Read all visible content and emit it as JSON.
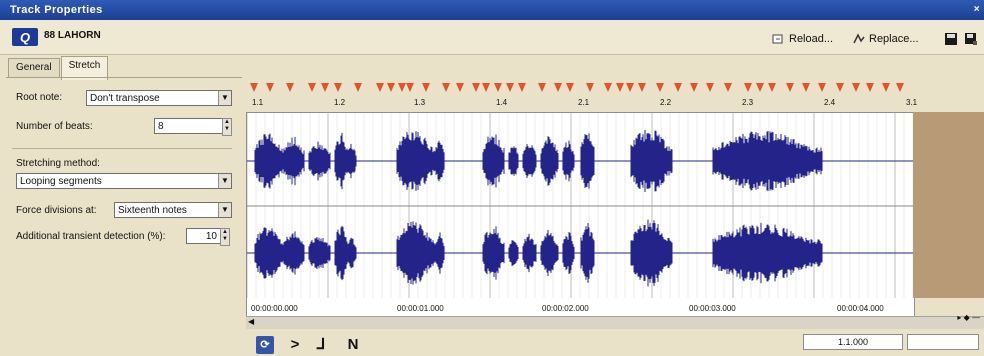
{
  "window": {
    "title": "Track Properties"
  },
  "track": {
    "name": "88 LAHORN"
  },
  "toolbar": {
    "reload_label": "Reload...",
    "replace_label": "Replace..."
  },
  "tabs": [
    {
      "label": "General"
    },
    {
      "label": "Stretch"
    }
  ],
  "stretch": {
    "root_note_label": "Root note:",
    "root_note_value": "Don't transpose",
    "beats_label": "Number of beats:",
    "beats_value": "8",
    "method_label": "Stretching method:",
    "method_value": "Looping segments",
    "divisions_label": "Force divisions at:",
    "divisions_value": "Sixteenth notes",
    "transient_label": "Additional transient detection (%):",
    "transient_value": "10"
  },
  "ruler": [
    "1.1",
    "1.2",
    "1.3",
    "1.4",
    "2.1",
    "2.2",
    "2.3",
    "2.4",
    "3.1"
  ],
  "timeline": [
    "00:00:00.000",
    "00:00:01.000",
    "00:00:02.000",
    "00:00:03.000",
    "00:00:04.000"
  ],
  "position": "1.1.000",
  "colors": {
    "waveform": "#23238a",
    "marker": "#e2542a",
    "title_bar": "#1c3f93"
  }
}
